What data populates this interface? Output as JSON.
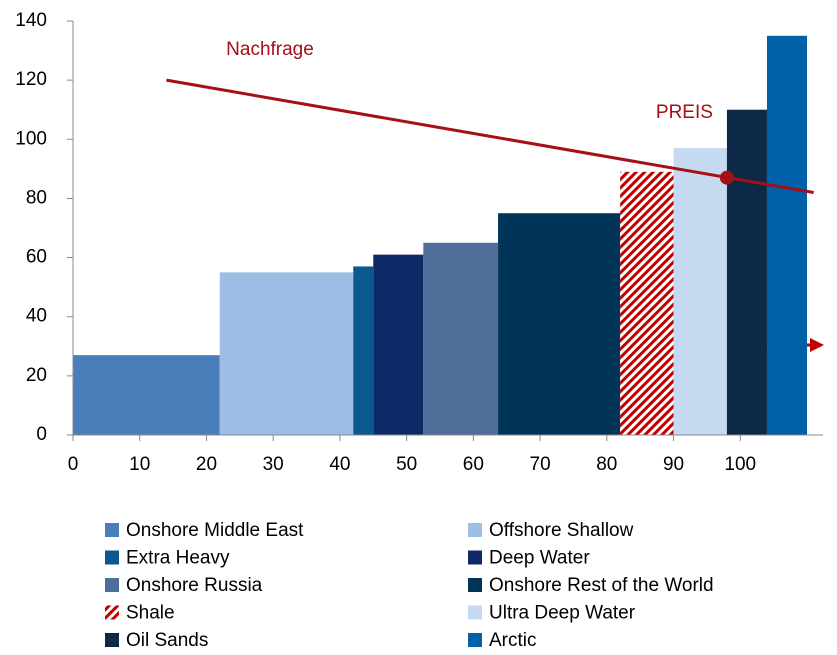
{
  "chart_data": {
    "type": "bar",
    "xlim": [
      0,
      110
    ],
    "ylim": [
      0,
      140
    ],
    "xticks": [
      0,
      10,
      20,
      30,
      40,
      50,
      60,
      70,
      80,
      90,
      100
    ],
    "yticks": [
      0,
      20,
      40,
      60,
      80,
      100,
      120,
      140
    ],
    "bars": [
      {
        "name": "Onshore Middle East",
        "color": "#4a7ebb",
        "x": [
          0,
          22
        ],
        "value": 27
      },
      {
        "name": "Offshore Shallow",
        "color": "#9dbde4",
        "x": [
          22,
          42
        ],
        "value": 55
      },
      {
        "name": "Extra Heavy",
        "color": "#0b5a8f",
        "x": [
          42,
          45
        ],
        "value": 57
      },
      {
        "name": "Deep Water",
        "color": "#0d2a66",
        "x": [
          45,
          52.5
        ],
        "value": 61
      },
      {
        "name": "Onshore Russia",
        "color": "#4f6e9a",
        "x": [
          52.5,
          63.7
        ],
        "value": 65
      },
      {
        "name": "Onshore Rest of the World",
        "color": "#003458",
        "x": [
          63.7,
          82
        ],
        "value": 75
      },
      {
        "name": "Shale",
        "color": "#c00000",
        "hatch": true,
        "x": [
          82,
          90
        ],
        "value": 89
      },
      {
        "name": "Ultra Deep Water",
        "color": "#c5d9f1",
        "x": [
          90,
          98
        ],
        "value": 97
      },
      {
        "name": "Oil Sands",
        "color": "#0c2a48",
        "x": [
          98,
          104
        ],
        "value": 110
      },
      {
        "name": "Arctic",
        "color": "#0060a8",
        "x": [
          104,
          110
        ],
        "value": 135
      }
    ],
    "demand": {
      "name": "Nachfrage",
      "color": "#a50f15",
      "x": [
        14,
        111
      ],
      "values": [
        120,
        82
      ]
    },
    "price": {
      "label": "PREIS",
      "color": "#a50f15",
      "x": 98,
      "value": 87
    }
  }
}
